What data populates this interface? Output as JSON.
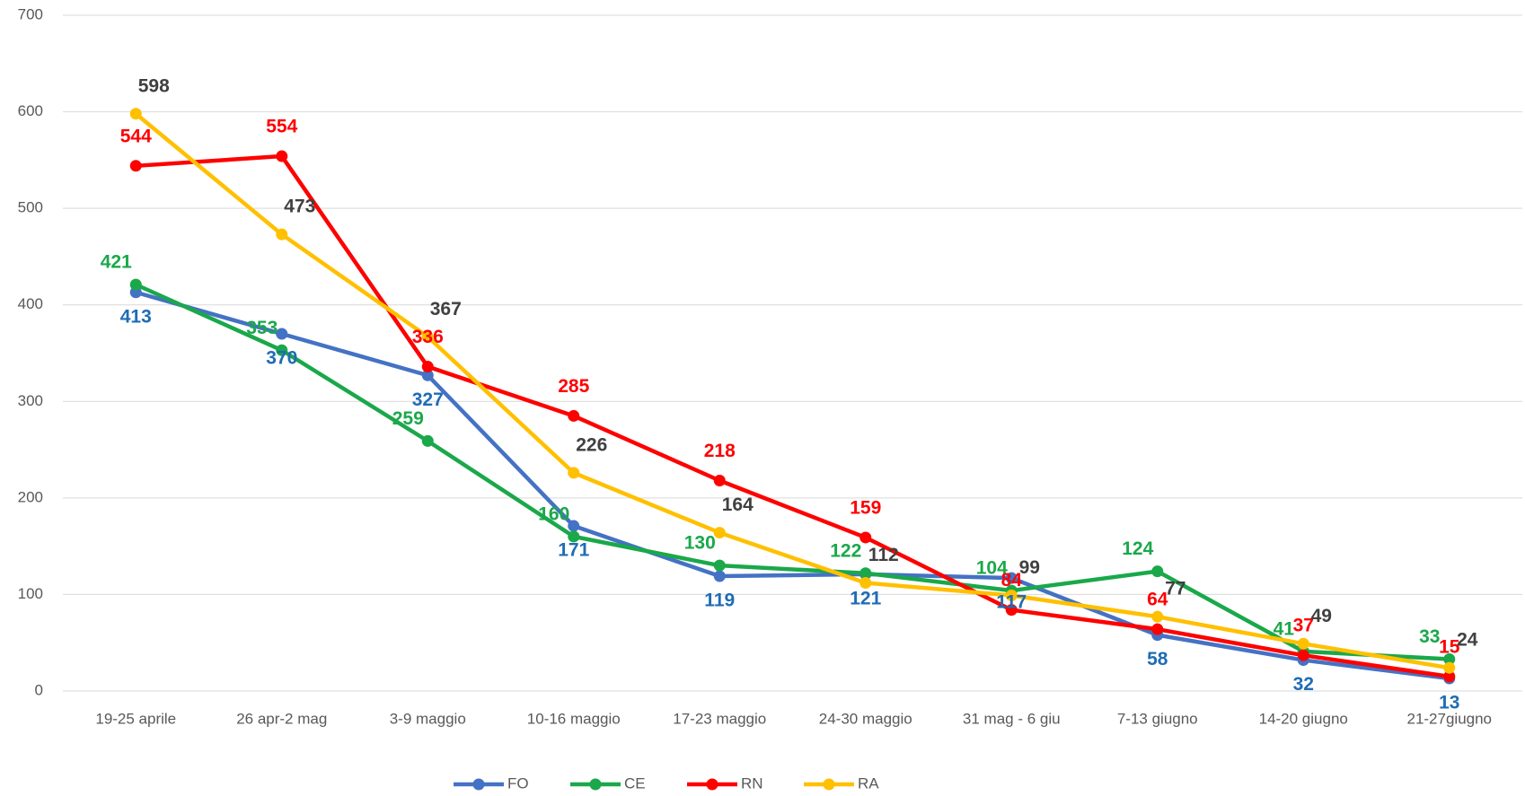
{
  "chart_data": {
    "type": "line",
    "categories": [
      "19-25 aprile",
      "26 apr-2 mag",
      "3-9 maggio",
      "10-16 maggio",
      "17-23 maggio",
      "24-30 maggio",
      "31 mag - 6 giu",
      "7-13 giugno",
      "14-20 giugno",
      "21-27giugno"
    ],
    "series": [
      {
        "name": "FO",
        "color": "#4472c4",
        "label_color": "#1f6cb5",
        "values": [
          413,
          370,
          327,
          171,
          119,
          121,
          117,
          58,
          32,
          13
        ]
      },
      {
        "name": "CE",
        "color": "#1aa84a",
        "label_color": "#1aa84a",
        "values": [
          421,
          353,
          259,
          160,
          130,
          122,
          104,
          124,
          41,
          33
        ]
      },
      {
        "name": "RN",
        "color": "#ff0000",
        "label_color": "#ff0000",
        "values": [
          544,
          554,
          336,
          285,
          218,
          159,
          84,
          64,
          37,
          15
        ]
      },
      {
        "name": "RA",
        "color": "#ffc000",
        "label_color": "#404040",
        "values": [
          598,
          473,
          367,
          226,
          164,
          112,
          99,
          77,
          49,
          24
        ]
      }
    ],
    "ylim": [
      0,
      700
    ],
    "yticks": [
      0,
      100,
      200,
      300,
      400,
      500,
      600,
      700
    ],
    "grid": true,
    "legend": "bottom"
  }
}
